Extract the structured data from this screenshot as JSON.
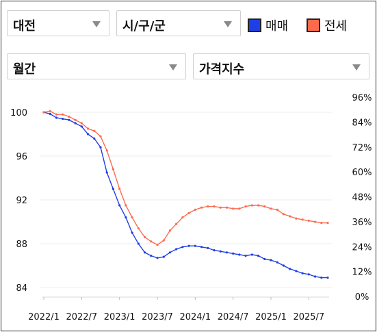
{
  "filters": {
    "region": "대전",
    "district": "시/구/군",
    "period": "월간",
    "metric": "가격지수"
  },
  "legend": [
    {
      "label": "매매",
      "color": "#1f3fe6"
    },
    {
      "label": "전세",
      "color": "#ff6a4d"
    }
  ],
  "chart_data": {
    "type": "line",
    "grid": "horizontal",
    "x_ticks": [
      "2022/1",
      "2022/7",
      "2023/1",
      "2023/7",
      "2024/1",
      "2024/7",
      "2025/1",
      "2025/7"
    ],
    "y_left": {
      "ticks": [
        "100",
        "96",
        "92",
        "88",
        "84"
      ],
      "range": [
        83.5,
        100.5
      ]
    },
    "y_right": {
      "ticks": [
        "96%",
        "84%",
        "72%",
        "60%",
        "48%",
        "36%",
        "24%",
        "12%",
        "0%"
      ]
    },
    "x": [
      "2022/1",
      "2022/2",
      "2022/3",
      "2022/4",
      "2022/5",
      "2022/6",
      "2022/7",
      "2022/8",
      "2022/9",
      "2022/10",
      "2022/11",
      "2022/12",
      "2023/1",
      "2023/2",
      "2023/3",
      "2023/4",
      "2023/5",
      "2023/6",
      "2023/7",
      "2023/8",
      "2023/9",
      "2023/10",
      "2023/11",
      "2023/12",
      "2024/1",
      "2024/2",
      "2024/3",
      "2024/4",
      "2024/5",
      "2024/6",
      "2024/7",
      "2024/8",
      "2024/9",
      "2024/10",
      "2024/11",
      "2024/12",
      "2025/1",
      "2025/2",
      "2025/3",
      "2025/4",
      "2025/5",
      "2025/6",
      "2025/7",
      "2025/8",
      "2025/9",
      "2025/10"
    ],
    "series": [
      {
        "name": "매매",
        "color": "#1f3fe6",
        "values": [
          100.0,
          99.85,
          99.5,
          99.4,
          99.3,
          99.0,
          98.7,
          98.0,
          97.6,
          96.8,
          94.5,
          93.0,
          91.5,
          90.4,
          89.0,
          88.0,
          87.2,
          86.9,
          86.7,
          86.8,
          87.2,
          87.5,
          87.7,
          87.8,
          87.8,
          87.7,
          87.6,
          87.4,
          87.3,
          87.2,
          87.1,
          87.0,
          86.9,
          87.0,
          86.9,
          86.6,
          86.5,
          86.3,
          86.0,
          85.7,
          85.5,
          85.3,
          85.2,
          85.0,
          84.9,
          84.9
        ]
      },
      {
        "name": "전세",
        "color": "#ff6a4d",
        "values": [
          100.0,
          100.1,
          99.8,
          99.8,
          99.6,
          99.3,
          99.0,
          98.5,
          98.3,
          97.8,
          96.5,
          94.8,
          93.0,
          91.5,
          90.4,
          89.4,
          88.6,
          88.2,
          87.9,
          88.3,
          89.2,
          89.8,
          90.4,
          90.8,
          91.1,
          91.3,
          91.4,
          91.4,
          91.3,
          91.3,
          91.2,
          91.2,
          91.4,
          91.5,
          91.5,
          91.4,
          91.2,
          91.1,
          90.7,
          90.5,
          90.3,
          90.2,
          90.1,
          90.0,
          89.9,
          89.9
        ]
      }
    ]
  }
}
